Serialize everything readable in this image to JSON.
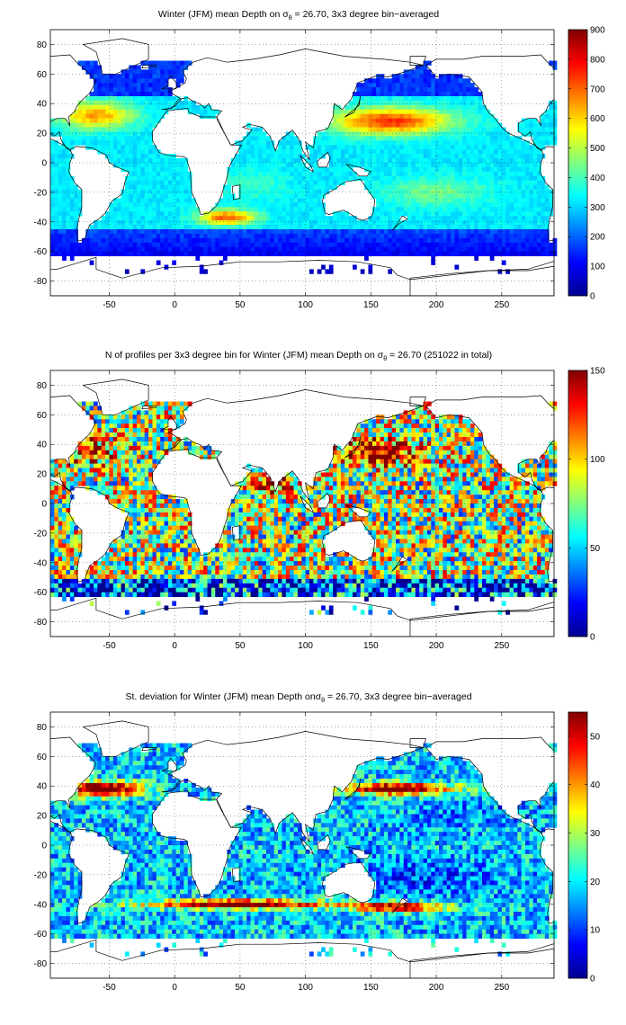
{
  "figure": {
    "colormap": "jet",
    "colormap_stops": [
      "#00008f",
      "#0000ff",
      "#0080ff",
      "#00ffff",
      "#80ff80",
      "#ffff00",
      "#ff8000",
      "#ff0000",
      "#800000"
    ],
    "land_color": "#ffffff",
    "coast_color": "#000000",
    "grid": "dotted"
  },
  "chart_data": [
    {
      "type": "heatmap",
      "title": "Winter (JFM) mean Depth on σθ = 26.70, 3x3 degree bin−averaged",
      "title_parts": {
        "prefix": "Winter (JFM) mean Depth on ",
        "sym": "σ",
        "sub": "θ",
        "suffix": " = 26.70, 3x3 degree bin−averaged"
      },
      "xlim": [
        -95,
        290
      ],
      "ylim": [
        -90,
        90
      ],
      "xticks": [
        -50,
        0,
        50,
        100,
        150,
        200,
        250
      ],
      "yticks": [
        80,
        60,
        40,
        20,
        0,
        -20,
        -40,
        -60,
        -80
      ],
      "colorbar": {
        "min": 0,
        "max": 900,
        "ticks": [
          0,
          100,
          200,
          300,
          400,
          500,
          600,
          700,
          800,
          900
        ]
      },
      "bin_size_deg": 3,
      "features": {
        "north_atlantic_max": 650,
        "north_pacific_max": 750,
        "south_atlantic_south_indian_max": 720,
        "tropical_typical": 320,
        "southern_ocean_typical": 120
      }
    },
    {
      "type": "heatmap",
      "title": "N of profiles per 3x3 degree bin for Winter (JFM) mean Depth on σθ = 26.70 (251022 in total)",
      "title_parts": {
        "prefix": "N of profiles per 3x3 degree bin for Winter (JFM) mean Depth on ",
        "sym": "σ",
        "sub": "θ",
        "suffix": " = 26.70 (251022 in total)"
      },
      "total_profiles": 251022,
      "xlim": [
        -95,
        290
      ],
      "ylim": [
        -90,
        90
      ],
      "xticks": [
        -50,
        0,
        50,
        100,
        150,
        200,
        250
      ],
      "yticks": [
        80,
        60,
        40,
        20,
        0,
        -20,
        -40,
        -60,
        -80
      ],
      "colorbar": {
        "min": 0,
        "max": 150,
        "ticks": [
          0,
          50,
          100,
          150
        ]
      },
      "bin_size_deg": 3,
      "features": {
        "kuroshio_region": 150,
        "arabian_sea_bay_of_bengal": 150,
        "open_ocean_typical": 80,
        "southern_ocean_typical": 30
      }
    },
    {
      "type": "heatmap",
      "title": "St. deviation for Winter (JFM) mean Depth onσθ = 26.70, 3x3 degree bin−averaged",
      "title_parts": {
        "prefix": "St. deviation for Winter (JFM) mean Depth on",
        "sym": "σ",
        "sub": "θ",
        "suffix": " = 26.70, 3x3 degree bin−averaged"
      },
      "xlim": [
        -95,
        290
      ],
      "ylim": [
        -90,
        90
      ],
      "xticks": [
        -50,
        0,
        50,
        100,
        150,
        200,
        250
      ],
      "yticks": [
        80,
        60,
        40,
        20,
        0,
        -20,
        -40,
        -60,
        -80
      ],
      "colorbar": {
        "min": 0,
        "max": 55,
        "ticks": [
          0,
          10,
          20,
          30,
          40,
          50
        ]
      },
      "bin_size_deg": 3,
      "features": {
        "gulf_stream_kuroshio": 55,
        "southern_ocean_front": 55,
        "tropical_typical": 18,
        "subtropical_gyres": 12
      }
    }
  ]
}
